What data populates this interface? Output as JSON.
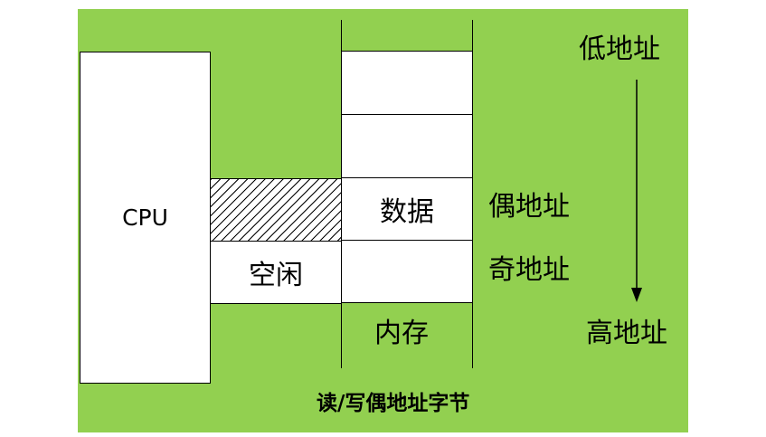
{
  "cpu": {
    "label": "CPU"
  },
  "bus": {
    "idle_label": "空闲"
  },
  "memory": {
    "data_label": "数据",
    "caption": "内存"
  },
  "address_labels": {
    "low": "低地址",
    "even": "偶地址",
    "odd": "奇地址",
    "high": "高地址"
  },
  "caption": "读/写偶地址字节",
  "colors": {
    "background": "#92d050",
    "box_fill": "#ffffff",
    "stroke": "#000000"
  }
}
